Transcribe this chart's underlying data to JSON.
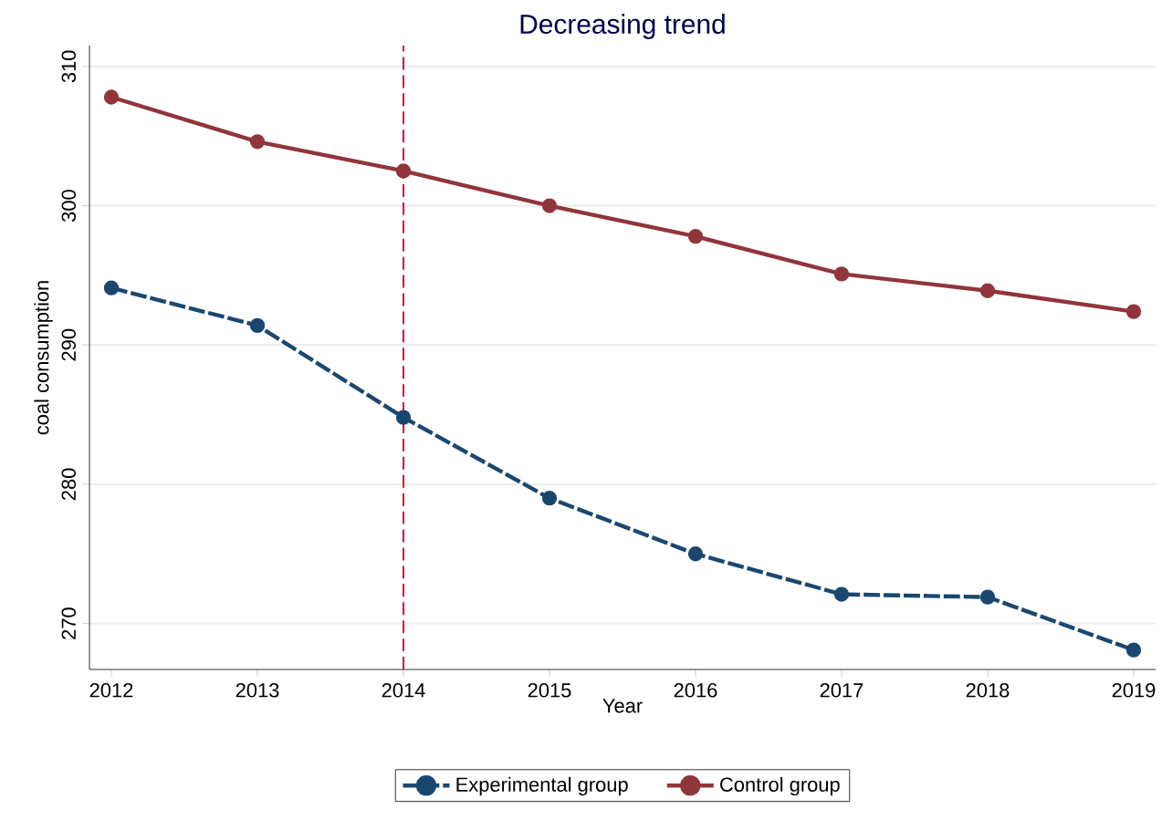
{
  "chart_data": {
    "type": "line",
    "title": "Decreasing trend",
    "xlabel": "Year",
    "ylabel": "coal consumption",
    "x": [
      2012,
      2013,
      2014,
      2015,
      2016,
      2017,
      2018,
      2019
    ],
    "series": [
      {
        "name": "Experimental group",
        "color": "#1a476f",
        "line_style": "dashed",
        "values": [
          294.1,
          291.4,
          284.8,
          279.0,
          275.0,
          272.1,
          271.9,
          268.1
        ]
      },
      {
        "name": "Control group",
        "color": "#90353b",
        "line_style": "solid",
        "values": [
          307.8,
          304.6,
          302.5,
          300.0,
          297.8,
          295.1,
          293.9,
          292.4
        ]
      }
    ],
    "xlim": [
      2011.85,
      2019.15
    ],
    "ylim": [
      266.7,
      311.5
    ],
    "xticks": [
      2012,
      2013,
      2014,
      2015,
      2016,
      2017,
      2018,
      2019
    ],
    "yticks": [
      270,
      280,
      290,
      300,
      310
    ],
    "ref_lines": [
      {
        "axis": "x",
        "value": 2014,
        "color": "#d0103a",
        "line_style": "dashed"
      }
    ],
    "grid": "y",
    "legend": "bottom",
    "marker": "circle"
  }
}
